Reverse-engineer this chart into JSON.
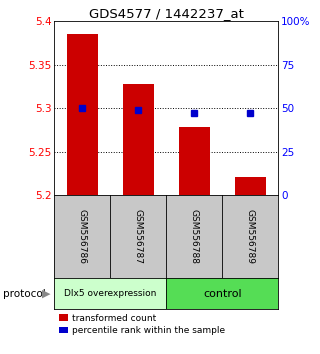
{
  "title": "GDS4577 / 1442237_at",
  "samples": [
    "GSM556786",
    "GSM556787",
    "GSM556788",
    "GSM556789"
  ],
  "bar_values": [
    5.385,
    5.328,
    5.278,
    5.221
  ],
  "bar_bottom": 5.2,
  "percentile_values": [
    50,
    49,
    47,
    47
  ],
  "ylim": [
    5.2,
    5.4
  ],
  "y2lim": [
    0,
    100
  ],
  "yticks": [
    5.2,
    5.25,
    5.3,
    5.35,
    5.4
  ],
  "ytick_labels": [
    "5.2",
    "5.25",
    "5.3",
    "5.35",
    "5.4"
  ],
  "y2ticks": [
    0,
    25,
    50,
    75,
    100
  ],
  "y2tick_labels": [
    "0",
    "25",
    "50",
    "75",
    "100%"
  ],
  "hlines": [
    5.35,
    5.3,
    5.25
  ],
  "bar_color": "#cc0000",
  "dot_color": "#0000cc",
  "group1_label": "Dlx5 overexpression",
  "group2_label": "control",
  "group1_color": "#ccffcc",
  "group2_color": "#55dd55",
  "protocol_label": "protocol",
  "legend_bar_label": "transformed count",
  "legend_dot_label": "percentile rank within the sample",
  "sample_box_color": "#c8c8c8",
  "bar_width": 0.55
}
